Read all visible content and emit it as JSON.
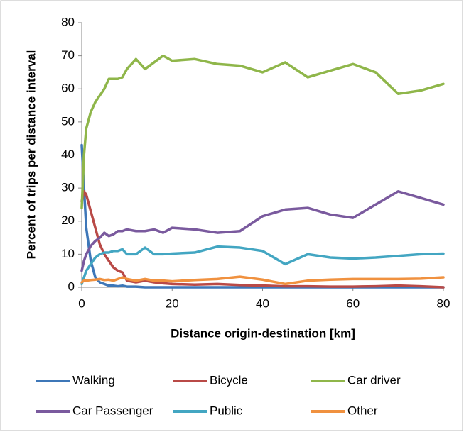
{
  "chart_data": {
    "type": "line",
    "xlabel": "Distance origin-destination [km]",
    "ylabel": "Percent of trips per distance interval",
    "x": [
      0,
      0.5,
      1,
      2,
      3,
      4,
      5,
      6,
      7,
      8,
      9,
      10,
      12,
      14,
      16,
      18,
      20,
      25,
      30,
      35,
      40,
      45,
      50,
      55,
      60,
      65,
      70,
      75,
      80
    ],
    "series": [
      {
        "name": "Walking",
        "color": "#3e77b8",
        "values": [
          43,
          30,
          18,
          8,
          3,
          1.5,
          1,
          0.5,
          0.5,
          0.3,
          0.5,
          0.2,
          0.2,
          0,
          0,
          0,
          0,
          0,
          0,
          0,
          0,
          0,
          0,
          0,
          0,
          0,
          0,
          0,
          0
        ]
      },
      {
        "name": "Bicycle",
        "color": "#b94a47",
        "values": [
          26,
          29,
          28,
          23,
          18,
          13,
          10,
          8,
          6,
          5,
          4.5,
          2,
          1.5,
          2,
          1.5,
          1.2,
          1,
          0.8,
          1,
          0.7,
          0.5,
          0.3,
          0.3,
          0.2,
          0.2,
          0.3,
          0.5,
          0.3,
          0
        ]
      },
      {
        "name": "Car driver",
        "color": "#8fb64a",
        "values": [
          24,
          40,
          48,
          53,
          56,
          58,
          60,
          63,
          63,
          63,
          63.5,
          66,
          69,
          66,
          68,
          70,
          68.5,
          69,
          67.5,
          67,
          65,
          68,
          63.5,
          65.5,
          67.5,
          65,
          58.5,
          59.5,
          61.5
        ]
      },
      {
        "name": "Car Passenger",
        "color": "#7a5a9e",
        "values": [
          5,
          8,
          10,
          12.5,
          14,
          15,
          16.5,
          15.5,
          16,
          17,
          17,
          17.5,
          17,
          17,
          17.5,
          16.5,
          18,
          17.5,
          16.5,
          17,
          21.5,
          23.5,
          24,
          22,
          21,
          25,
          29,
          27,
          25
        ]
      },
      {
        "name": "Public",
        "color": "#43a6c2",
        "values": [
          1,
          3,
          5,
          7,
          9,
          10,
          10.5,
          10.5,
          11,
          11,
          11.5,
          10,
          10,
          12,
          10,
          10,
          10.2,
          10.5,
          12.3,
          12,
          11,
          7,
          10,
          9,
          8.7,
          9,
          9.5,
          10,
          10.2
        ]
      },
      {
        "name": "Other",
        "color": "#f0913f",
        "values": [
          1.5,
          2,
          2,
          2.2,
          2.3,
          2.5,
          2.2,
          2.3,
          2,
          2.5,
          3,
          2.5,
          2,
          2.5,
          2,
          2,
          1.8,
          2.2,
          2.5,
          3.2,
          2.3,
          1,
          2,
          2.3,
          2.5,
          2.5,
          2.5,
          2.6,
          3
        ]
      }
    ],
    "xlim": [
      0,
      80
    ],
    "xticks": [
      0,
      20,
      40,
      60,
      80
    ],
    "ylim": [
      0,
      80
    ],
    "yticks": [
      0,
      10,
      20,
      30,
      40,
      50,
      60,
      70,
      80
    ],
    "grid": false,
    "legend": "bottom"
  }
}
